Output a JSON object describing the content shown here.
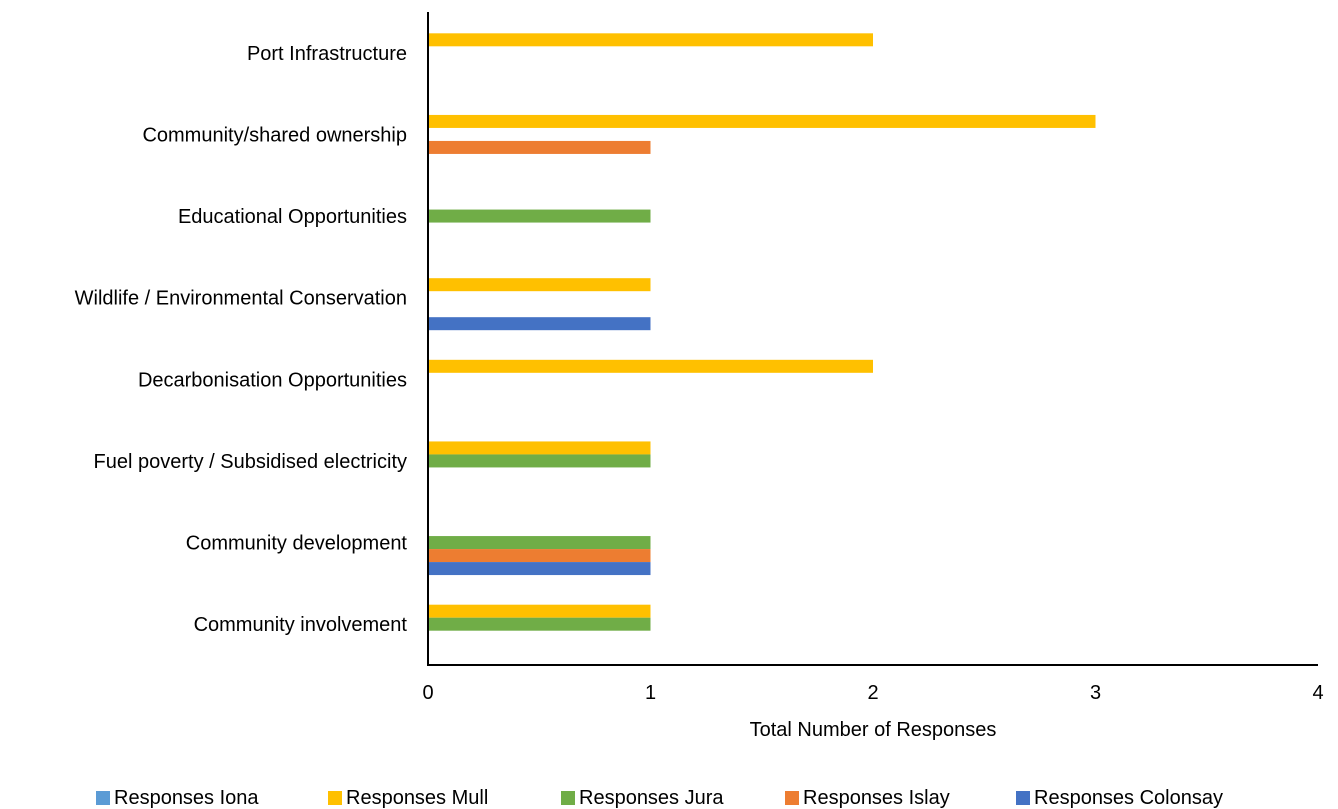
{
  "chart_data": {
    "type": "bar",
    "orientation": "horizontal",
    "categories": [
      "Port Infrastructure",
      "Community/shared ownership",
      "Educational Opportunities",
      "Wildlife / Environmental Conservation",
      "Decarbonisation Opportunities",
      "Fuel poverty / Subsidised electricity",
      "Community development",
      "Community involvement"
    ],
    "series": [
      {
        "name": "Responses Iona",
        "color": "#5B9BD5",
        "values": [
          0,
          0,
          0,
          0,
          0,
          0,
          0,
          0
        ]
      },
      {
        "name": "Responses Mull",
        "color": "#FFC000",
        "values": [
          2,
          3,
          0,
          1,
          2,
          1,
          0,
          1
        ]
      },
      {
        "name": "Responses Jura",
        "color": "#70AD47",
        "values": [
          0,
          0,
          1,
          0,
          0,
          1,
          1,
          1
        ]
      },
      {
        "name": "Responses Islay",
        "color": "#ED7D31",
        "values": [
          0,
          1,
          0,
          0,
          0,
          0,
          1,
          0
        ]
      },
      {
        "name": "Responses Colonsay",
        "color": "#4472C4",
        "values": [
          0,
          0,
          0,
          1,
          0,
          0,
          1,
          0
        ]
      }
    ],
    "xlabel": "Total Number of Responses",
    "ylabel": "",
    "xlim": [
      0,
      4
    ],
    "xticks": [
      "0",
      "1",
      "2",
      "3",
      "4"
    ],
    "grid": false,
    "legend_position": "bottom"
  }
}
